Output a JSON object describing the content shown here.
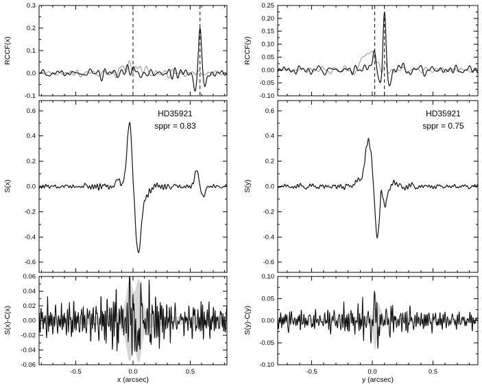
{
  "chart_data": [
    {
      "id": "rccf-x",
      "type": "line",
      "ylabel": "RCCF(x)",
      "xlim": [
        -0.82,
        0.82
      ],
      "ylim": [
        -0.1,
        0.3
      ],
      "yticks": [
        -0.1,
        0.0,
        0.1,
        0.2,
        0.3
      ],
      "ytick_labels": [
        "-0.1",
        "0.0",
        "0.1",
        "0.2",
        "0.3"
      ],
      "xticks": [
        -0.5,
        0.0,
        0.5
      ],
      "xtick_labels": [
        "-0.5",
        "0.0",
        "0.5"
      ],
      "minor_x": 0.1,
      "minor_y": 0.05,
      "dashed_x": [
        0.0,
        0.585
      ],
      "series": [
        {
          "name": "reference-ccf-gray",
          "color": "#9a9a9a",
          "width": 1.1,
          "noise": {
            "seed": 11,
            "amp": 0.004,
            "fmin": 4,
            "fmax": 22,
            "burst_c": 0,
            "burst_s": 0.3,
            "burst_f": 1.5
          },
          "features": [
            [
              -0.08,
              0.022,
              0.03
            ],
            [
              -0.015,
              0.03,
              0.025
            ],
            [
              0.05,
              0.022,
              0.025
            ],
            [
              0.11,
              0.012,
              0.02
            ]
          ]
        },
        {
          "name": "rccf-black",
          "color": "#111111",
          "width": 1.2,
          "noise": {
            "seed": 7,
            "amp": 0.007,
            "fmin": 4,
            "fmax": 26,
            "burst_c": 0,
            "burst_s": 0.5,
            "burst_f": 0.5
          },
          "features": [
            [
              -0.05,
              0.015,
              0.025
            ],
            [
              0.02,
              0.02,
              0.02
            ],
            [
              0.07,
              -0.015,
              0.02
            ],
            [
              0.545,
              -0.07,
              0.013
            ],
            [
              0.585,
              0.21,
              0.012
            ],
            [
              0.625,
              -0.07,
              0.013
            ]
          ]
        }
      ],
      "annotations": []
    },
    {
      "id": "s-x",
      "type": "line",
      "ylabel": "S(x)",
      "xlim": [
        -0.82,
        0.82
      ],
      "ylim": [
        -0.68,
        0.68
      ],
      "yticks": [
        -0.6,
        -0.4,
        -0.2,
        0.0,
        0.2,
        0.4,
        0.6
      ],
      "ytick_labels": [
        "-0.6",
        "-0.4",
        "-0.2",
        "0.0",
        "0.2",
        "0.4",
        "0.6"
      ],
      "xticks": [
        -0.5,
        0.0,
        0.5
      ],
      "xtick_labels": [
        "-0.5",
        "0.0",
        "0.5"
      ],
      "minor_x": 0.1,
      "minor_y": 0.1,
      "dashed_x": [],
      "series": [
        {
          "name": "signal-black",
          "color": "#111111",
          "width": 1.2,
          "noise": {
            "seed": 21,
            "amp": 0.008,
            "fmin": 6,
            "fmax": 50,
            "burst_c": 0,
            "burst_s": 0.25,
            "burst_f": 0.8
          },
          "features": [
            [
              -0.13,
              0.05,
              0.022
            ],
            [
              -0.03,
              0.52,
              0.022
            ],
            [
              0.045,
              -0.52,
              0.026
            ],
            [
              0.11,
              -0.07,
              0.03
            ],
            [
              0.555,
              0.13,
              0.016
            ],
            [
              0.615,
              -0.07,
              0.018
            ]
          ]
        }
      ],
      "annotations": [
        "HD35921",
        "sppr = 0.83"
      ]
    },
    {
      "id": "resid-x",
      "type": "line",
      "ylabel": "S(x)-C(x)",
      "xlabel": "x (arcsec)",
      "xlim": [
        -0.82,
        0.82
      ],
      "ylim": [
        -0.06,
        0.06
      ],
      "yticks": [
        -0.06,
        -0.04,
        -0.02,
        0.0,
        0.02,
        0.04,
        0.06
      ],
      "ytick_labels": [
        "-0.06",
        "-0.04",
        "-0.02",
        "0.00",
        "0.02",
        "0.04",
        "0.06"
      ],
      "xticks": [
        -0.5,
        0.0,
        0.5
      ],
      "xtick_labels": [
        "-0.5",
        "0.0",
        "0.5"
      ],
      "minor_x": 0.1,
      "minor_y": 0.01,
      "dashed_x": [],
      "band": {
        "base": 0.0055,
        "color": "#d6d6d6",
        "bumps": [
          [
            -0.03,
            0.04,
            0.025
          ],
          [
            0.05,
            0.042,
            0.025
          ],
          [
            0.0,
            0.01,
            0.12
          ]
        ]
      },
      "series": [
        {
          "name": "residual-black",
          "color": "#111111",
          "width": 1.1,
          "noise": {
            "seed": 31,
            "amp": 0.011,
            "fmin": 12,
            "fmax": 95,
            "burst_c": -0.05,
            "burst_s": 0.18,
            "burst_f": 1.2
          },
          "features": [
            [
              -0.02,
              0.028,
              0.009
            ],
            [
              0.02,
              -0.02,
              0.008
            ],
            [
              0.045,
              -0.03,
              0.01
            ],
            [
              0.07,
              0.02,
              0.008
            ]
          ]
        }
      ],
      "annotations": []
    },
    {
      "id": "rccf-y",
      "type": "line",
      "ylabel": "RCCF(y)",
      "xlim": [
        -0.78,
        0.87
      ],
      "ylim": [
        -0.1,
        0.25
      ],
      "yticks": [
        -0.1,
        -0.05,
        0.0,
        0.05,
        0.1,
        0.15,
        0.2,
        0.25
      ],
      "ytick_labels": [
        "-0.10",
        "-0.05",
        "0.00",
        "0.05",
        "0.10",
        "0.15",
        "0.20",
        "0.25"
      ],
      "xticks": [
        -0.5,
        0.0,
        0.5
      ],
      "xtick_labels": [
        "-0.5",
        "0.0",
        "0.5"
      ],
      "minor_x": 0.1,
      "minor_y": 0.025,
      "dashed_x": [
        0.02,
        0.1
      ],
      "series": [
        {
          "name": "reference-ccf-gray",
          "color": "#9a9a9a",
          "width": 1.1,
          "noise": {
            "seed": 41,
            "amp": 0.004,
            "fmin": 4,
            "fmax": 22,
            "burst_c": 0,
            "burst_s": 0.3,
            "burst_f": 1.5
          },
          "features": [
            [
              -0.06,
              0.05,
              0.03
            ],
            [
              -0.01,
              0.055,
              0.025
            ],
            [
              0.04,
              0.03,
              0.02
            ]
          ]
        },
        {
          "name": "rccf-black",
          "color": "#111111",
          "width": 1.2,
          "noise": {
            "seed": 43,
            "amp": 0.007,
            "fmin": 4,
            "fmax": 26,
            "burst_c": 0,
            "burst_s": 0.5,
            "burst_f": 0.5
          },
          "features": [
            [
              -0.04,
              0.015,
              0.03
            ],
            [
              0.02,
              0.05,
              0.015
            ],
            [
              0.06,
              -0.04,
              0.012
            ],
            [
              0.1,
              0.2,
              0.012
            ],
            [
              0.14,
              -0.075,
              0.014
            ],
            [
              0.19,
              0.02,
              0.02
            ]
          ]
        }
      ],
      "annotations": []
    },
    {
      "id": "s-y",
      "type": "line",
      "ylabel": "S(y)",
      "xlim": [
        -0.78,
        0.87
      ],
      "ylim": [
        -0.68,
        0.68
      ],
      "yticks": [
        -0.6,
        -0.4,
        -0.2,
        0.0,
        0.2,
        0.4,
        0.6
      ],
      "ytick_labels": [
        "-0.6",
        "-0.4",
        "-0.2",
        "0.0",
        "0.2",
        "0.4",
        "0.6"
      ],
      "xticks": [
        -0.5,
        0.0,
        0.5
      ],
      "xtick_labels": [
        "-0.5",
        "0.0",
        "0.5"
      ],
      "minor_x": 0.1,
      "minor_y": 0.1,
      "dashed_x": [],
      "series": [
        {
          "name": "signal-black",
          "color": "#111111",
          "width": 1.2,
          "noise": {
            "seed": 51,
            "amp": 0.008,
            "fmin": 6,
            "fmax": 50,
            "burst_c": 0,
            "burst_s": 0.25,
            "burst_f": 0.8
          },
          "features": [
            [
              -0.11,
              0.05,
              0.03
            ],
            [
              -0.03,
              0.37,
              0.027
            ],
            [
              0.04,
              -0.4,
              0.02
            ],
            [
              0.075,
              0.12,
              0.012
            ],
            [
              0.1,
              -0.16,
              0.022
            ],
            [
              0.17,
              0.03,
              0.025
            ]
          ]
        }
      ],
      "annotations": [
        "HD35921",
        "sppr = 0.75"
      ]
    },
    {
      "id": "resid-y",
      "type": "line",
      "ylabel": "S(y)-C(y)",
      "xlabel": "y (arcsec)",
      "xlim": [
        -0.78,
        0.87
      ],
      "ylim": [
        -0.1,
        0.1
      ],
      "yticks": [
        -0.1,
        -0.05,
        0.0,
        0.05,
        0.1
      ],
      "ytick_labels": [
        "-0.10",
        "-0.05",
        "0.00",
        "0.05",
        "0.10"
      ],
      "xticks": [
        -0.5,
        0.0,
        0.5
      ],
      "xtick_labels": [
        "-0.5",
        "0.0",
        "0.5"
      ],
      "minor_x": 0.1,
      "minor_y": 0.025,
      "dashed_x": [],
      "band": {
        "base": 0.005,
        "color": "#d6d6d6",
        "bumps": [
          [
            0.02,
            0.048,
            0.01
          ],
          [
            0.05,
            0.028,
            0.018
          ],
          [
            0.0,
            0.006,
            0.12
          ]
        ]
      },
      "series": [
        {
          "name": "residual-black",
          "color": "#111111",
          "width": 1.1,
          "noise": {
            "seed": 61,
            "amp": 0.01,
            "fmin": 12,
            "fmax": 95,
            "burst_c": 0,
            "burst_s": 0.2,
            "burst_f": 0.8
          },
          "features": [
            [
              0.02,
              0.055,
              0.006
            ],
            [
              0.045,
              -0.028,
              0.008
            ],
            [
              -0.015,
              -0.018,
              0.008
            ]
          ]
        }
      ],
      "annotations": []
    }
  ]
}
